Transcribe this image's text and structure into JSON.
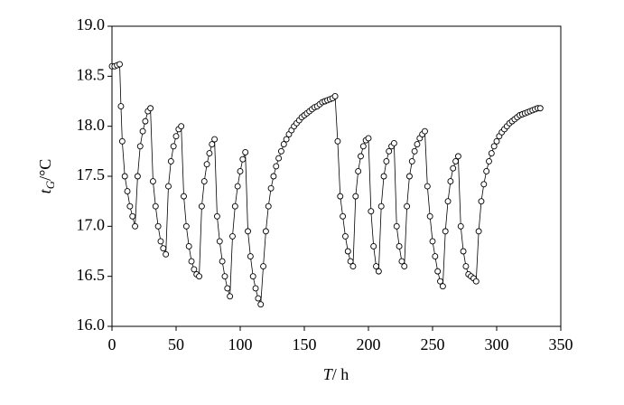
{
  "chart_data": {
    "type": "line",
    "x_label": {
      "main": "T",
      "unit": "/ h"
    },
    "y_label": {
      "main": "t",
      "sub": "G",
      "unit": "/°C"
    },
    "xlim": [
      0,
      350
    ],
    "xticks": [
      0,
      50,
      100,
      150,
      200,
      250,
      300,
      350
    ],
    "ylim": [
      16.0,
      19.0
    ],
    "yticks": [
      {
        "value": 16.0,
        "label": "16.0"
      },
      {
        "value": 16.5,
        "label": "16.5"
      },
      {
        "value": 17.0,
        "label": "17.0"
      },
      {
        "value": 17.5,
        "label": "17.5"
      },
      {
        "value": 18.0,
        "label": "18.0"
      },
      {
        "value": 18.5,
        "label": "18.5"
      },
      {
        "value": 19.0,
        "label": "19.0"
      }
    ],
    "color": "#000000",
    "marker": "open-circle",
    "grid": false,
    "x": [
      0,
      2,
      4,
      6,
      7,
      8,
      10,
      12,
      14,
      16,
      18,
      20,
      22,
      24,
      26,
      28,
      30,
      32,
      34,
      36,
      38,
      40,
      42,
      44,
      46,
      48,
      50,
      52,
      54,
      56,
      58,
      60,
      62,
      64,
      66,
      68,
      70,
      72,
      74,
      76,
      78,
      80,
      82,
      84,
      86,
      88,
      90,
      92,
      94,
      96,
      98,
      100,
      102,
      104,
      106,
      108,
      110,
      112,
      114,
      116,
      118,
      120,
      122,
      124,
      126,
      128,
      130,
      132,
      134,
      136,
      138,
      140,
      142,
      144,
      146,
      148,
      150,
      152,
      154,
      156,
      158,
      160,
      162,
      164,
      166,
      168,
      170,
      172,
      174,
      176,
      178,
      180,
      182,
      184,
      186,
      188,
      190,
      192,
      194,
      196,
      198,
      200,
      202,
      204,
      206,
      208,
      210,
      212,
      214,
      216,
      218,
      220,
      222,
      224,
      226,
      228,
      230,
      232,
      234,
      236,
      238,
      240,
      242,
      244,
      246,
      248,
      250,
      252,
      254,
      256,
      258,
      260,
      262,
      264,
      266,
      268,
      270,
      272,
      274,
      276,
      278,
      280,
      282,
      284,
      286,
      288,
      290,
      292,
      294,
      296,
      298,
      300,
      302,
      304,
      306,
      308,
      310,
      312,
      314,
      316,
      318,
      320,
      322,
      324,
      326,
      328,
      330,
      332,
      334
    ],
    "values": [
      18.6,
      18.6,
      18.61,
      18.62,
      18.2,
      17.85,
      17.5,
      17.35,
      17.2,
      17.1,
      17.0,
      17.5,
      17.8,
      17.95,
      18.05,
      18.15,
      18.18,
      17.45,
      17.2,
      17.0,
      16.85,
      16.78,
      16.72,
      17.4,
      17.65,
      17.8,
      17.9,
      17.97,
      18.0,
      17.3,
      17.0,
      16.8,
      16.65,
      16.57,
      16.52,
      16.5,
      17.2,
      17.45,
      17.62,
      17.73,
      17.82,
      17.87,
      17.1,
      16.85,
      16.65,
      16.5,
      16.38,
      16.3,
      16.9,
      17.2,
      17.4,
      17.55,
      17.67,
      17.74,
      16.95,
      16.7,
      16.5,
      16.38,
      16.28,
      16.22,
      16.6,
      16.95,
      17.2,
      17.38,
      17.5,
      17.6,
      17.68,
      17.75,
      17.82,
      17.87,
      17.92,
      17.96,
      18.0,
      18.03,
      18.06,
      18.09,
      18.11,
      18.13,
      18.15,
      18.17,
      18.19,
      18.2,
      18.22,
      18.24,
      18.25,
      18.26,
      18.27,
      18.28,
      18.3,
      17.85,
      17.3,
      17.1,
      16.9,
      16.75,
      16.65,
      16.6,
      17.3,
      17.55,
      17.7,
      17.8,
      17.86,
      17.88,
      17.15,
      16.8,
      16.6,
      16.55,
      17.2,
      17.5,
      17.65,
      17.75,
      17.8,
      17.83,
      17.0,
      16.8,
      16.65,
      16.6,
      17.2,
      17.5,
      17.65,
      17.75,
      17.82,
      17.88,
      17.92,
      17.95,
      17.4,
      17.1,
      16.85,
      16.7,
      16.55,
      16.45,
      16.4,
      16.95,
      17.25,
      17.45,
      17.58,
      17.65,
      17.7,
      17.0,
      16.75,
      16.6,
      16.52,
      16.5,
      16.48,
      16.45,
      16.95,
      17.25,
      17.42,
      17.55,
      17.65,
      17.73,
      17.8,
      17.85,
      17.9,
      17.94,
      17.97,
      18.0,
      18.03,
      18.05,
      18.07,
      18.09,
      18.11,
      18.12,
      18.13,
      18.14,
      18.15,
      18.16,
      18.17,
      18.18,
      18.18
    ]
  }
}
